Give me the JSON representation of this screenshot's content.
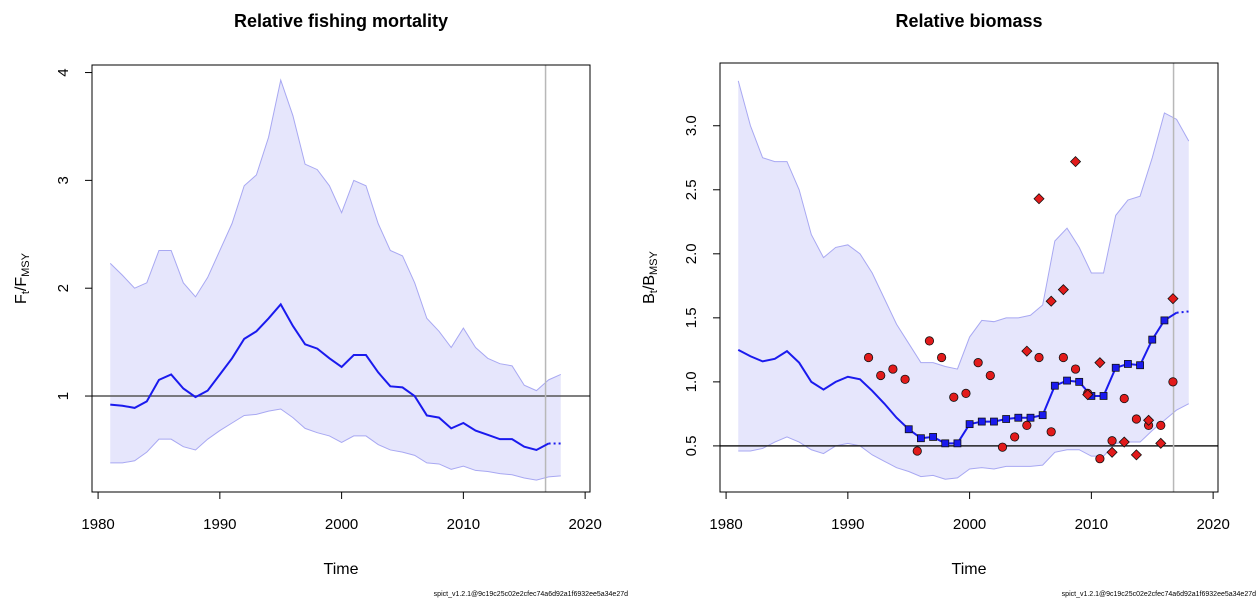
{
  "chart_data": [
    {
      "type": "line",
      "title": "Relative fishing mortality",
      "xlabel": "Time",
      "ylabel_parts": [
        "F",
        "t",
        "/F",
        "MSY"
      ],
      "footnote": "spict_v1.2.1@9c19c25c02e2cfec74a6d92a1f6932ee5a34e27d",
      "xlim": [
        1979.5,
        2020.4
      ],
      "xticks": [
        1980,
        1990,
        2000,
        2010,
        2020
      ],
      "ylim": [
        0.11,
        4.07
      ],
      "yticks": [
        1,
        2,
        3,
        4
      ],
      "x": [
        1981,
        1982,
        1983,
        1984,
        1985,
        1986,
        1987,
        1988,
        1989,
        1990,
        1991,
        1992,
        1993,
        1994,
        1995,
        1996,
        1997,
        1998,
        1999,
        2000,
        2001,
        2002,
        2003,
        2004,
        2005,
        2006,
        2007,
        2008,
        2009,
        2010,
        2011,
        2012,
        2013,
        2014,
        2015,
        2016,
        2017,
        2018
      ],
      "band": {
        "color": "#e6e6fc",
        "edge": "#a8a8f2",
        "upper": [
          2.23,
          2.12,
          2.0,
          2.05,
          2.35,
          2.35,
          2.05,
          1.92,
          2.1,
          2.35,
          2.6,
          2.95,
          3.05,
          3.4,
          3.93,
          3.6,
          3.15,
          3.1,
          2.95,
          2.7,
          3.0,
          2.95,
          2.6,
          2.35,
          2.3,
          2.05,
          1.72,
          1.6,
          1.45,
          1.63,
          1.45,
          1.35,
          1.3,
          1.28,
          1.1,
          1.05,
          1.15,
          1.2
        ],
        "lower": [
          0.38,
          0.38,
          0.4,
          0.48,
          0.6,
          0.6,
          0.53,
          0.5,
          0.6,
          0.68,
          0.75,
          0.82,
          0.83,
          0.86,
          0.88,
          0.8,
          0.7,
          0.66,
          0.63,
          0.57,
          0.63,
          0.63,
          0.55,
          0.5,
          0.48,
          0.45,
          0.38,
          0.37,
          0.32,
          0.35,
          0.31,
          0.3,
          0.28,
          0.27,
          0.24,
          0.22,
          0.25,
          0.26
        ]
      },
      "series": [
        {
          "color": "#1a1aee",
          "style": "solid",
          "values": [
            0.92,
            0.91,
            0.89,
            0.95,
            1.15,
            1.2,
            1.07,
            0.99,
            1.05,
            1.2,
            1.35,
            1.53,
            1.6,
            1.72,
            1.85,
            1.65,
            1.48,
            1.44,
            1.35,
            1.27,
            1.38,
            1.38,
            1.22,
            1.09,
            1.08,
            1.0,
            0.82,
            0.8,
            0.7,
            0.75,
            0.68,
            0.64,
            0.6,
            0.6,
            0.53,
            0.5,
            0.56,
            null
          ]
        },
        {
          "color": "#1a1aee",
          "style": "dotted",
          "values": [
            null,
            null,
            null,
            null,
            null,
            null,
            null,
            null,
            null,
            null,
            null,
            null,
            null,
            null,
            null,
            null,
            null,
            null,
            null,
            null,
            null,
            null,
            null,
            null,
            null,
            null,
            null,
            null,
            null,
            null,
            null,
            null,
            null,
            null,
            null,
            null,
            0.56,
            0.56
          ]
        }
      ],
      "points": [],
      "hlines": [
        1
      ],
      "vlines": [
        2016.75
      ],
      "hline_color": "#555555",
      "vline_color": "#b8b8b8"
    },
    {
      "type": "line",
      "title": "Relative biomass",
      "xlabel": "Time",
      "ylabel_parts": [
        "B",
        "t",
        "/B",
        "MSY"
      ],
      "footnote": "spict_v1.2.1@9c19c25c02e2cfec74a6d92a1f6932ee5a34e27d",
      "xlim": [
        1979.5,
        2020.4
      ],
      "xticks": [
        1980,
        1990,
        2000,
        2010,
        2020
      ],
      "ylim": [
        0.14,
        3.49
      ],
      "yticks": [
        0.5,
        {
          "value": 1,
          "label": "1.0"
        },
        1.5,
        {
          "value": 2,
          "label": "2.0"
        },
        2.5,
        {
          "value": 3,
          "label": "3.0"
        }
      ],
      "x": [
        1981,
        1982,
        1983,
        1984,
        1985,
        1986,
        1987,
        1988,
        1989,
        1990,
        1991,
        1992,
        1993,
        1994,
        1995,
        1996,
        1997,
        1998,
        1999,
        2000,
        2001,
        2002,
        2003,
        2004,
        2005,
        2006,
        2007,
        2008,
        2009,
        2010,
        2011,
        2012,
        2013,
        2014,
        2015,
        2016,
        2017,
        2018
      ],
      "band": {
        "color": "#e6e6fc",
        "edge": "#a8a8f2",
        "upper": [
          3.35,
          3.0,
          2.75,
          2.72,
          2.72,
          2.5,
          2.15,
          1.97,
          2.05,
          2.07,
          2.0,
          1.85,
          1.65,
          1.45,
          1.3,
          1.15,
          1.15,
          1.12,
          1.1,
          1.35,
          1.48,
          1.47,
          1.5,
          1.5,
          1.52,
          1.6,
          2.1,
          2.2,
          2.05,
          1.85,
          1.85,
          2.3,
          2.42,
          2.45,
          2.75,
          3.1,
          3.05,
          2.88
        ],
        "lower": [
          0.46,
          0.46,
          0.48,
          0.53,
          0.57,
          0.53,
          0.47,
          0.44,
          0.5,
          0.52,
          0.5,
          0.43,
          0.38,
          0.33,
          0.3,
          0.26,
          0.27,
          0.24,
          0.25,
          0.32,
          0.33,
          0.32,
          0.34,
          0.34,
          0.34,
          0.35,
          0.45,
          0.47,
          0.47,
          0.42,
          0.42,
          0.52,
          0.53,
          0.53,
          0.62,
          0.7,
          0.78,
          0.83
        ]
      },
      "series": [
        {
          "color": "#1a1aee",
          "style": "solid",
          "values": [
            1.25,
            1.2,
            1.16,
            1.18,
            1.24,
            1.15,
            1.0,
            0.94,
            1.0,
            1.04,
            1.02,
            0.93,
            0.83,
            0.72,
            0.63,
            0.56,
            0.57,
            0.52,
            0.52,
            0.67,
            0.69,
            0.69,
            0.71,
            0.72,
            0.72,
            0.74,
            0.97,
            1.01,
            1.0,
            0.89,
            0.89,
            1.11,
            1.14,
            1.13,
            1.33,
            1.48,
            1.54,
            null
          ]
        },
        {
          "color": "#1a1aee",
          "style": "dotted",
          "values": [
            null,
            null,
            null,
            null,
            null,
            null,
            null,
            null,
            null,
            null,
            null,
            null,
            null,
            null,
            null,
            null,
            null,
            null,
            null,
            null,
            null,
            null,
            null,
            null,
            null,
            null,
            null,
            null,
            null,
            null,
            null,
            null,
            null,
            null,
            null,
            null,
            1.54,
            1.55
          ]
        }
      ],
      "points": [
        {
          "shape": "square",
          "color": "#1a1aee",
          "x": [
            1995,
            1996,
            1997,
            1998,
            1999,
            2000,
            2001,
            2002,
            2003,
            2004,
            2005,
            2006,
            2007,
            2008,
            2009,
            2010,
            2011,
            2012,
            2013,
            2014,
            2015,
            2016
          ],
          "values": [
            0.63,
            0.56,
            0.57,
            0.52,
            0.52,
            0.67,
            0.69,
            0.69,
            0.71,
            0.72,
            0.72,
            0.74,
            0.97,
            1.01,
            1.0,
            0.89,
            0.89,
            1.11,
            1.14,
            1.13,
            1.33,
            1.48
          ]
        },
        {
          "shape": "circle",
          "color": "#e21b1b",
          "x": [
            1991.7,
            1992.7,
            1993.7,
            1994.7,
            1995.7,
            1996.7,
            1997.7,
            1998.7,
            1999.7,
            2000.7,
            2001.7,
            2002.7,
            2003.7,
            2004.7,
            2005.7,
            2006.7,
            2007.7,
            2008.7,
            2009.7,
            2010.7,
            2011.7,
            2012.7,
            2013.7,
            2014.7,
            2015.7,
            2016.7
          ],
          "values": [
            1.19,
            1.05,
            1.1,
            1.02,
            0.46,
            1.32,
            1.19,
            0.88,
            0.91,
            1.15,
            1.05,
            0.49,
            0.57,
            0.66,
            1.19,
            0.61,
            1.19,
            1.1,
            0.91,
            0.4,
            0.54,
            0.87,
            0.71,
            0.66,
            0.66,
            1.0
          ]
        },
        {
          "shape": "diamond",
          "color": "#e21b1b",
          "x": [
            2004.7,
            2005.7,
            2006.7,
            2007.7,
            2008.7,
            2009.7,
            2010.7,
            2011.7,
            2012.7,
            2013.7,
            2014.7,
            2015.7,
            2016.7
          ],
          "values": [
            1.24,
            2.43,
            1.63,
            1.72,
            2.72,
            0.9,
            1.15,
            0.45,
            0.53,
            0.43,
            0.7,
            0.52,
            1.65
          ]
        }
      ],
      "hlines": [
        0.5
      ],
      "vlines": [
        2016.75
      ],
      "hline_color": "#222222",
      "vline_color": "#b8b8b8"
    }
  ]
}
